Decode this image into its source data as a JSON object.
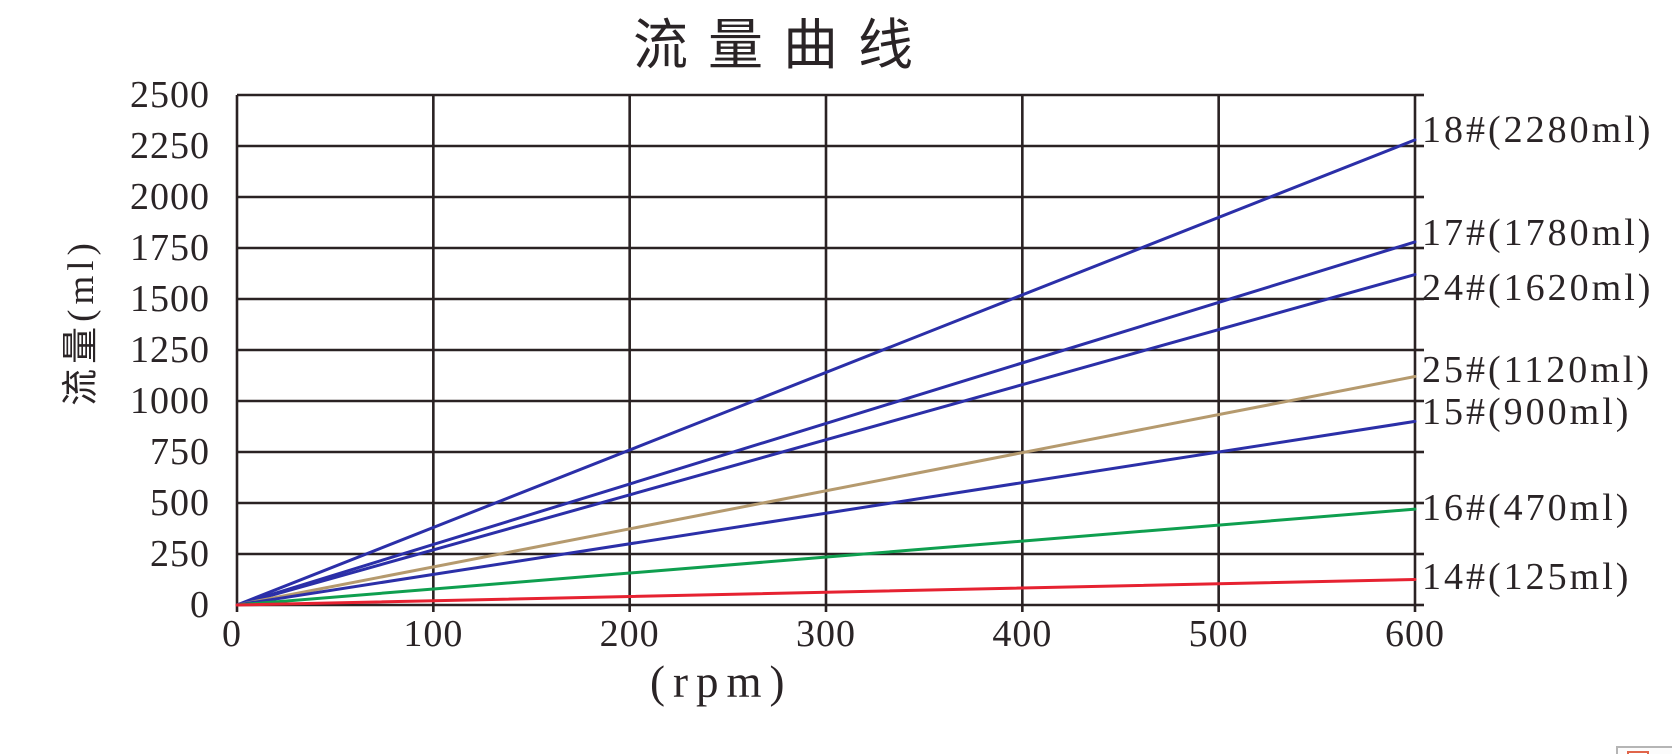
{
  "page": {
    "background": "#ffffff"
  },
  "chart_data": {
    "type": "line",
    "title": "流量曲线",
    "xlabel": "(rpm)",
    "ylabel": "流量(ml)",
    "xlim": [
      0,
      600
    ],
    "ylim": [
      0,
      2500
    ],
    "x_ticks": [
      0,
      100,
      200,
      300,
      400,
      500,
      600
    ],
    "y_ticks": [
      0,
      250,
      500,
      750,
      1000,
      1250,
      1500,
      1750,
      2000,
      2250,
      2500
    ],
    "grid": true,
    "legend_position": "right-line-end-labels",
    "axis_color": "#2a2223",
    "text_color": "#2a2426",
    "series": [
      {
        "name": "18#(2280ml)",
        "color": "#2b2fa8",
        "x": [
          0,
          600
        ],
        "values": [
          0,
          2280
        ]
      },
      {
        "name": "17#(1780ml)",
        "color": "#2b2fa8",
        "x": [
          0,
          600
        ],
        "values": [
          0,
          1780
        ]
      },
      {
        "name": "24#(1620ml)",
        "color": "#2b2fa8",
        "x": [
          0,
          600
        ],
        "values": [
          0,
          1620
        ]
      },
      {
        "name": "25#(1120ml)",
        "color": "#b59a6e",
        "x": [
          0,
          600
        ],
        "values": [
          0,
          1120
        ]
      },
      {
        "name": "15#(900ml)",
        "color": "#2b2fa8",
        "x": [
          0,
          600
        ],
        "values": [
          0,
          900
        ]
      },
      {
        "name": "16#(470ml)",
        "color": "#0f9f4f",
        "x": [
          0,
          600
        ],
        "values": [
          0,
          470
        ]
      },
      {
        "name": "14#(125ml)",
        "color": "#e62231",
        "x": [
          0,
          600
        ],
        "values": [
          0,
          125
        ]
      }
    ]
  },
  "corner_widget": {
    "border_color": "#b5b5b5",
    "icon_border_color": "#e0654a"
  }
}
